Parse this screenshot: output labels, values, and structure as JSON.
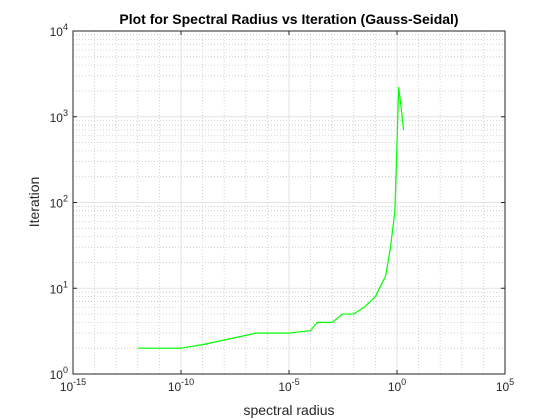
{
  "chart_data": {
    "type": "line",
    "title": "Plot for Spectral Radius vs Iteration (Gauss-Seidal)",
    "xlabel": "spectral radius",
    "ylabel": "Iteration",
    "x_scale": "log",
    "y_scale": "log",
    "xlim": [
      1e-15,
      100000.0
    ],
    "ylim": [
      1,
      10000
    ],
    "grid": true,
    "minor_grid": true,
    "x_ticks": [
      {
        "value": 1e-15,
        "base": "10",
        "exp": "-15"
      },
      {
        "value": 1e-10,
        "base": "10",
        "exp": "-10"
      },
      {
        "value": 1e-05,
        "base": "10",
        "exp": "-5"
      },
      {
        "value": 1,
        "base": "10",
        "exp": "0"
      },
      {
        "value": 100000.0,
        "base": "10",
        "exp": "5"
      }
    ],
    "y_ticks": [
      {
        "value": 1,
        "base": "10",
        "exp": "0"
      },
      {
        "value": 10,
        "base": "10",
        "exp": "1"
      },
      {
        "value": 100,
        "base": "10",
        "exp": "2"
      },
      {
        "value": 1000,
        "base": "10",
        "exp": "3"
      },
      {
        "value": 10000,
        "base": "10",
        "exp": "4"
      }
    ],
    "series": [
      {
        "color": "#00ff00",
        "x": [
          1e-12,
          1e-10,
          1e-09,
          3e-07,
          1e-06,
          1e-05,
          0.0001,
          0.0002,
          0.001,
          0.003,
          0.01,
          0.03,
          0.1,
          0.3,
          0.5,
          0.8,
          1.2,
          1.6,
          2.0
        ],
        "y": [
          2,
          2,
          2.2,
          3,
          3,
          3,
          3.2,
          4,
          4,
          5,
          5,
          6,
          8,
          14,
          30,
          80,
          2200,
          1200,
          700
        ]
      }
    ]
  }
}
